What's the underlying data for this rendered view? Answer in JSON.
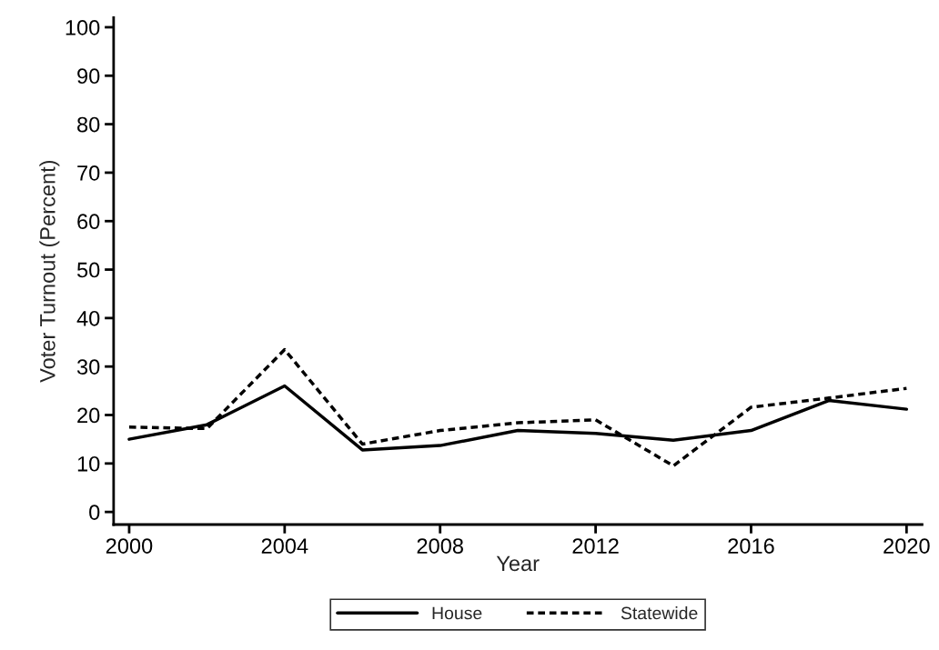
{
  "chart_data": {
    "type": "line",
    "xlabel": "Year",
    "ylabel": "Voter Turnout (Percent)",
    "x": [
      2000,
      2002,
      2004,
      2006,
      2008,
      2010,
      2012,
      2014,
      2016,
      2018,
      2020
    ],
    "series": [
      {
        "name": "House",
        "color": "#000000",
        "line_style": "solid",
        "values": [
          15,
          18,
          26,
          12.8,
          13.7,
          16.8,
          16.2,
          14.8,
          16.8,
          23,
          21.2
        ]
      },
      {
        "name": "Statewide",
        "color": "#000000",
        "line_style": "dashed",
        "values": [
          17.5,
          17.2,
          33.5,
          14,
          16.8,
          18.4,
          19,
          9.5,
          21.6,
          23.5,
          25.5
        ]
      }
    ],
    "xlim": [
      1999.6,
      2020.4
    ],
    "xticks": [
      2000,
      2004,
      2008,
      2012,
      2016,
      2020
    ],
    "ylim": [
      -2.6,
      102
    ],
    "yticks": [
      0,
      10,
      20,
      30,
      40,
      50,
      60,
      70,
      80,
      90,
      100
    ],
    "grid": false,
    "legend": "bottom",
    "marker": "none"
  }
}
